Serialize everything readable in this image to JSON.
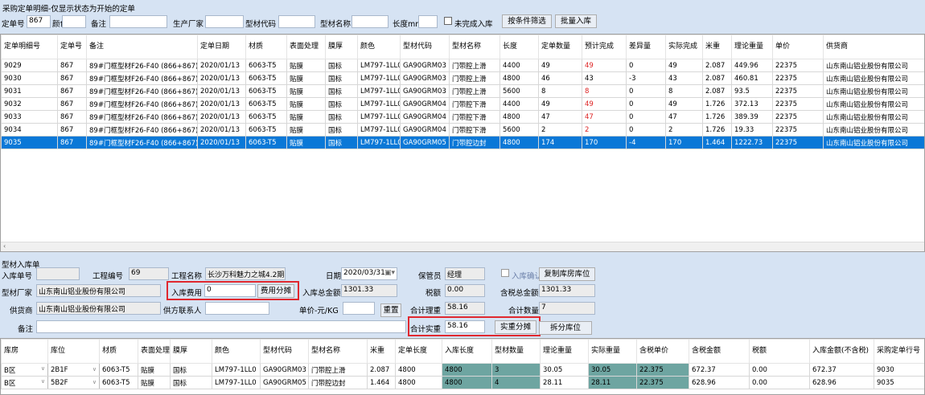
{
  "title": "采购定单明细-仅显示状态为开始的定单",
  "filters": {
    "order_no_label": "定单号",
    "order_no": "867",
    "color_label": "颜色",
    "remark_label": "备注",
    "maker_label": "生产厂家",
    "code_label": "型材代码",
    "name_label": "型材名称",
    "length_label": "长度mm",
    "incomplete_label": "未完成入库",
    "filter_btn": "按条件筛选",
    "batch_btn": "批量入库"
  },
  "orders": {
    "headers": [
      "定单明细号",
      "定单号",
      "备注",
      "定单日期",
      "材质",
      "表面处理",
      "膜厚",
      "颜色",
      "型材代码",
      "型材名称",
      "长度",
      "定单数量",
      "预计完成",
      "差异量",
      "实际完成",
      "米重",
      "理论重量",
      "单价",
      "供货商"
    ],
    "rows": [
      [
        "9029",
        "867",
        "89#门框型材F26-F40 (866+867)",
        "2020/01/13",
        "6063-T5",
        "贴膜",
        "国标",
        "LM797-1LL0",
        "GA90GRM03",
        "门带腔上滑",
        "4400",
        "49",
        "49",
        "0",
        "49",
        "2.087",
        "449.96",
        "22375",
        "山东南山铝业股份有限公司"
      ],
      [
        "9030",
        "867",
        "89#门框型材F26-F40 (866+867)",
        "2020/01/13",
        "6063-T5",
        "贴膜",
        "国标",
        "LM797-1LL0",
        "GA90GRM03",
        "门带腔上滑",
        "4800",
        "46",
        "43",
        "-3",
        "43",
        "2.087",
        "460.81",
        "22375",
        "山东南山铝业股份有限公司"
      ],
      [
        "9031",
        "867",
        "89#门框型材F26-F40 (866+867)",
        "2020/01/13",
        "6063-T5",
        "贴膜",
        "国标",
        "LM797-1LL0",
        "GA90GRM03",
        "门带腔上滑",
        "5600",
        "8",
        "8",
        "0",
        "8",
        "2.087",
        "93.5",
        "22375",
        "山东南山铝业股份有限公司"
      ],
      [
        "9032",
        "867",
        "89#门框型材F26-F40 (866+867)",
        "2020/01/13",
        "6063-T5",
        "贴膜",
        "国标",
        "LM797-1LL0",
        "GA90GRM04",
        "门带腔下滑",
        "4400",
        "49",
        "49",
        "0",
        "49",
        "1.726",
        "372.13",
        "22375",
        "山东南山铝业股份有限公司"
      ],
      [
        "9033",
        "867",
        "89#门框型材F26-F40 (866+867)",
        "2020/01/13",
        "6063-T5",
        "贴膜",
        "国标",
        "LM797-1LL0",
        "GA90GRM04",
        "门带腔下滑",
        "4800",
        "47",
        "47",
        "0",
        "47",
        "1.726",
        "389.39",
        "22375",
        "山东南山铝业股份有限公司"
      ],
      [
        "9034",
        "867",
        "89#门框型材F26-F40 (866+867)",
        "2020/01/13",
        "6063-T5",
        "贴膜",
        "国标",
        "LM797-1LL0",
        "GA90GRM04",
        "门带腔下滑",
        "5600",
        "2",
        "2",
        "0",
        "2",
        "1.726",
        "19.33",
        "22375",
        "山东南山铝业股份有限公司"
      ],
      [
        "9035",
        "867",
        "89#门框型材F26-F40 (866+867)",
        "2020/01/13",
        "6063-T5",
        "贴膜",
        "国标",
        "LM797-1LL0",
        "GA90GRM05",
        "门带腔边封",
        "4800",
        "174",
        "170",
        "-4",
        "170",
        "1.464",
        "1222.73",
        "22375",
        "山东南山铝业股份有限公司"
      ]
    ],
    "red_estimate_rows": [
      0,
      2,
      3,
      4,
      5
    ],
    "selected_row": 6
  },
  "form": {
    "section_title": "型材入库单",
    "in_no_label": "入库单号",
    "in_no": "",
    "proj_no_label": "工程编号",
    "proj_no": "69",
    "proj_name_label": "工程名称",
    "proj_name": "长沙万科魅力之城4.2期",
    "date_label": "日期",
    "date": "2020/03/31",
    "keeper_label": "保管员",
    "keeper": "经理",
    "confirm_label": "入库确认",
    "copy_btn": "复制库房库位",
    "maker_label": "型材厂家",
    "maker": "山东南山铝业股份有限公司",
    "fee_label": "入库费用",
    "fee": "0",
    "fee_btn": "费用分摊",
    "total_label": "入库总金额",
    "total": "1301.33",
    "tax_label": "税额",
    "tax": "0.00",
    "taxed_total_label": "含税总金额",
    "taxed_total": "1301.33",
    "supplier_label": "供货商",
    "supplier": "山东南山铝业股份有限公司",
    "contact_label": "供方联系人",
    "contact": "",
    "unit_price_label": "单价-元/KG",
    "unit_price": "",
    "reset_btn": "重置",
    "theory_weight_label": "合计理重",
    "theory_weight": "58.16",
    "qty_label": "合计数量",
    "qty": "7",
    "remark_label": "备注",
    "remark": "",
    "actual_weight_label": "合计实重",
    "actual_weight": "58.16",
    "weight_btn": "实重分摊",
    "split_btn": "拆分库位"
  },
  "items": {
    "headers": [
      "库房",
      "库位",
      "材质",
      "表面处理",
      "膜厚",
      "颜色",
      "型材代码",
      "型材名称",
      "米重",
      "定单长度",
      "入库长度",
      "型材数量",
      "理论重量",
      "实际重量",
      "含税单价",
      "含税金额",
      "税额",
      "入库金额(不含税)",
      "采购定单行号"
    ],
    "rows": [
      [
        "B区",
        "2B1F",
        "6063-T5",
        "贴膜",
        "国标",
        "LM797-1LL0",
        "GA90GRM03",
        "门带腔上滑",
        "2.087",
        "4800",
        "4800",
        "3",
        "30.05",
        "30.05",
        "22.375",
        "672.37",
        "0.00",
        "672.37",
        "9030"
      ],
      [
        "B区",
        "5B2F",
        "6063-T5",
        "贴膜",
        "国标",
        "LM797-1LL0",
        "GA90GRM05",
        "门带腔边封",
        "1.464",
        "4800",
        "4800",
        "4",
        "28.11",
        "28.11",
        "22.375",
        "628.96",
        "0.00",
        "628.96",
        "9035"
      ]
    ]
  },
  "colors": {
    "selected": "#0a78d7",
    "highlight": "#6ea5a1",
    "annotation": "#e0282f",
    "estimate_red": "#d22"
  }
}
